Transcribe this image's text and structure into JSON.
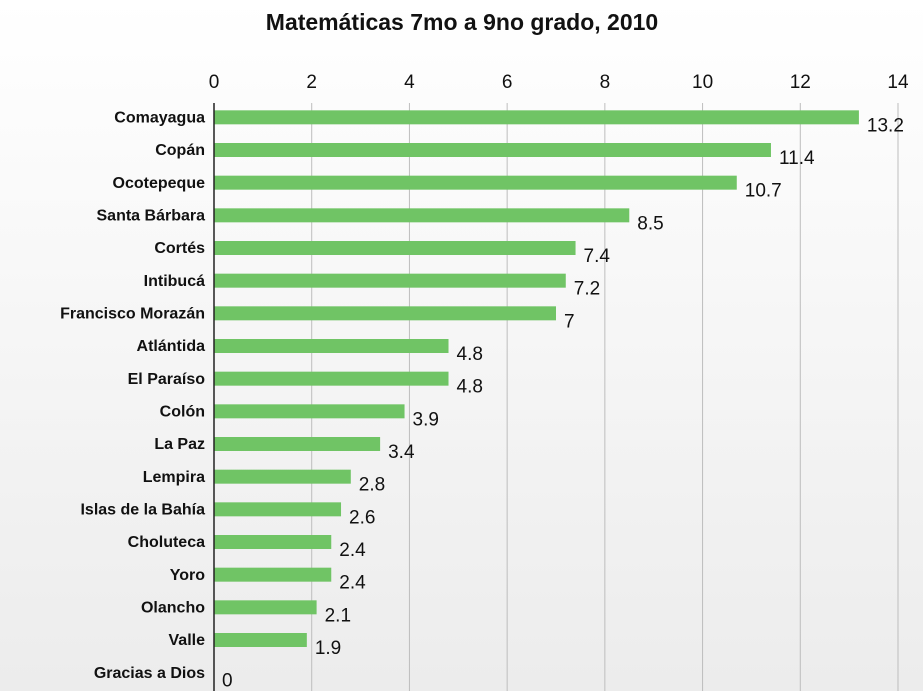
{
  "chart_data": {
    "type": "bar",
    "orientation": "horizontal",
    "title": "Matemáticas 7mo a 9no grado, 2010",
    "categories": [
      "Comayagua",
      "Copán",
      "Ocotepeque",
      "Santa Bárbara",
      "Cortés",
      "Intibucá",
      "Francisco Morazán",
      "Atlántida",
      "El Paraíso",
      "Colón",
      "La Paz",
      "Lempira",
      "Islas de la Bahía",
      "Choluteca",
      "Yoro",
      "Olancho",
      "Valle",
      "Gracias a Dios"
    ],
    "values": [
      13.2,
      11.4,
      10.7,
      8.5,
      7.4,
      7.2,
      7,
      4.8,
      4.8,
      3.9,
      3.4,
      2.8,
      2.6,
      2.4,
      2.4,
      2.1,
      1.9,
      0
    ],
    "color": "#70c465",
    "xlim": [
      0,
      14
    ],
    "xticks": [
      0,
      2,
      4,
      6,
      8,
      10,
      12,
      14
    ],
    "grid": true
  }
}
